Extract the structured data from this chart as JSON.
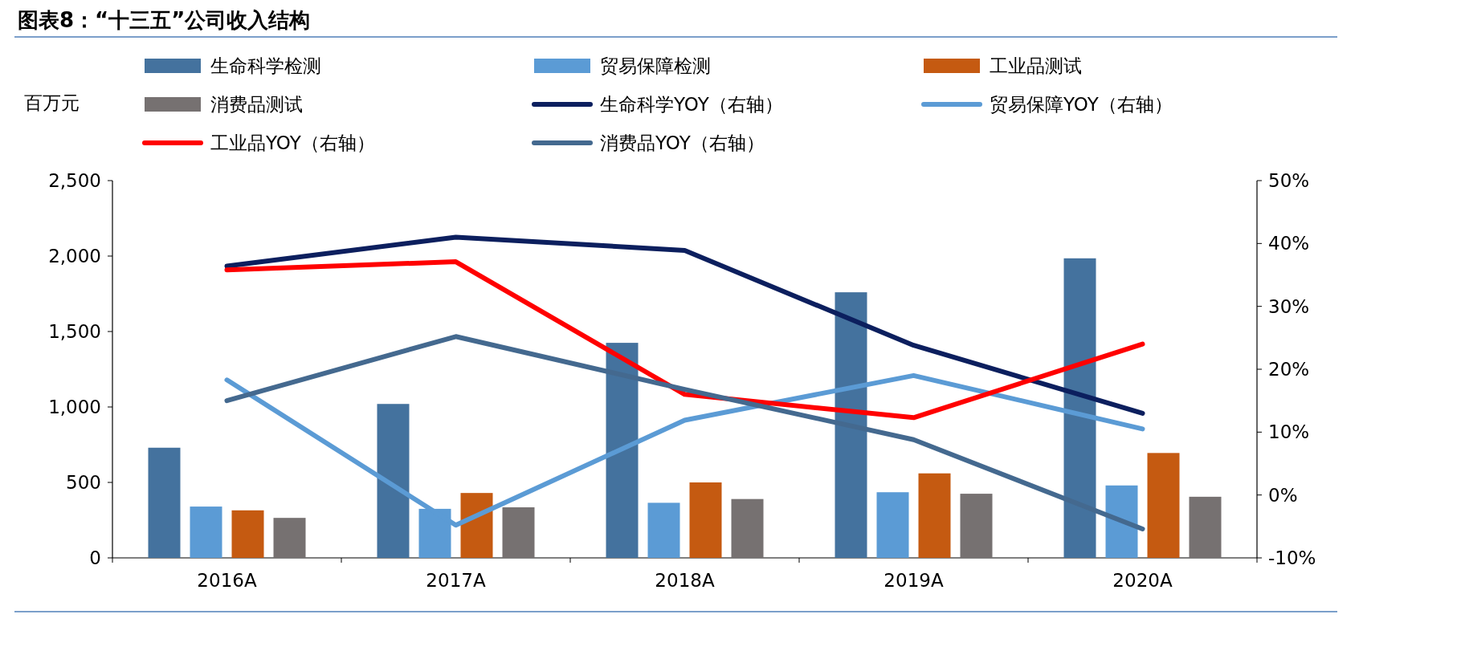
{
  "chart_data": {
    "type": "bar",
    "title": "图表8：“十三五”公司收入结构",
    "ylabel": "百万元",
    "categories": [
      "2016A",
      "2017A",
      "2018A",
      "2019A",
      "2020A"
    ],
    "series": [
      {
        "name": "生命科学检测",
        "color": "#44729e",
        "values": [
          730,
          1020,
          1425,
          1760,
          1985
        ]
      },
      {
        "name": "贸易保障检测",
        "color": "#5b9bd5",
        "values": [
          340,
          325,
          365,
          435,
          480
        ]
      },
      {
        "name": "工业品测试",
        "color": "#c55a11",
        "values": [
          315,
          430,
          500,
          560,
          695
        ]
      },
      {
        "name": "消费品测试",
        "color": "#767171",
        "values": [
          265,
          335,
          390,
          425,
          405
        ]
      },
      {
        "name": "生命科学YOY（右轴）",
        "type": "line",
        "axis": "y2",
        "color": "#0c1f5e",
        "values": [
          36.4,
          41.0,
          38.9,
          23.8,
          13.0
        ]
      },
      {
        "name": "贸易保障YOY（右轴）",
        "type": "line",
        "axis": "y2",
        "color": "#5b9bd5",
        "values": [
          18.3,
          -4.8,
          11.9,
          19.0,
          10.5
        ]
      },
      {
        "name": "工业品YOY（右轴）",
        "type": "line",
        "axis": "y2",
        "color": "#ff0000",
        "values": [
          35.8,
          37.1,
          16.0,
          12.3,
          24.0
        ]
      },
      {
        "name": "消费品YOY（右轴）",
        "type": "line",
        "axis": "y2",
        "color": "#44698f",
        "values": [
          15.0,
          25.2,
          16.8,
          8.8,
          -5.4
        ]
      }
    ],
    "ylim": [
      0,
      2500
    ],
    "yticks": [
      0,
      500,
      {
        "value": 1000,
        "label": "1,000"
      },
      {
        "value": 1500,
        "label": "1,500"
      },
      {
        "value": 2000,
        "label": "2,000"
      },
      {
        "value": 2500,
        "label": "2,500"
      }
    ],
    "y2lim": [
      -10,
      50
    ],
    "y2ticks": [
      {
        "value": -10,
        "label": "-10%"
      },
      {
        "value": 0,
        "label": "0%"
      },
      {
        "value": 10,
        "label": "10%"
      },
      {
        "value": 20,
        "label": "20%"
      },
      {
        "value": 30,
        "label": "30%"
      },
      {
        "value": 40,
        "label": "40%"
      },
      {
        "value": 50,
        "label": "50%"
      }
    ],
    "legend": "top"
  }
}
